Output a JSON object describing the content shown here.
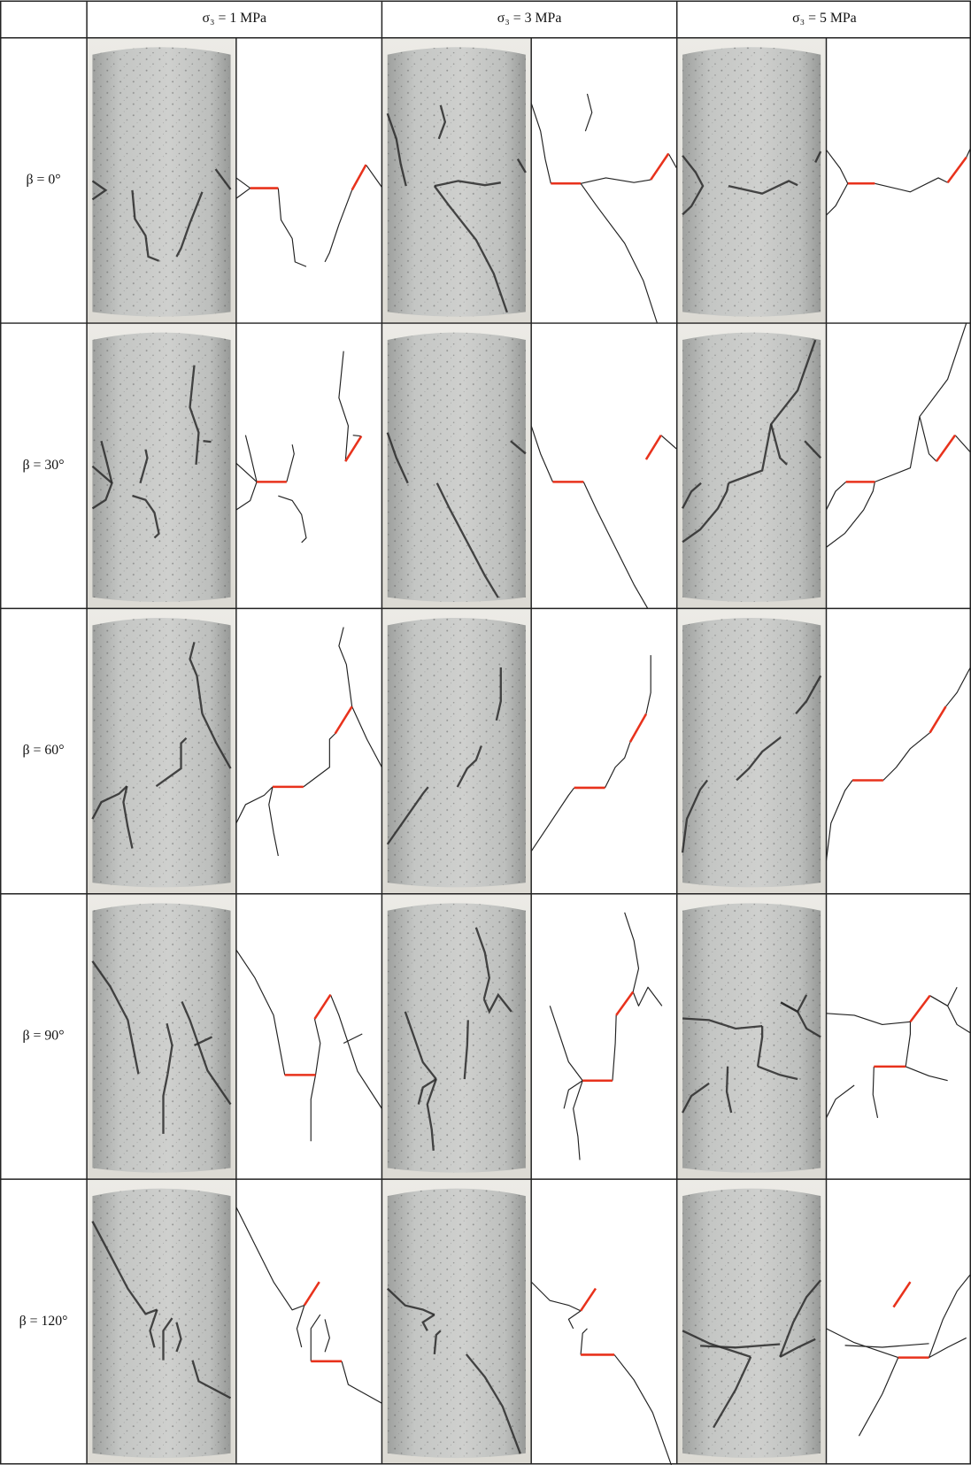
{
  "header": {
    "columns": [
      "σ₃ = 1 MPa",
      "σ₃ = 3 MPa",
      "σ₃ = 5 MPa"
    ]
  },
  "row_labels": [
    "β = 0°",
    "β = 30°",
    "β = 60°",
    "β = 90°",
    "β = 120°"
  ]
}
